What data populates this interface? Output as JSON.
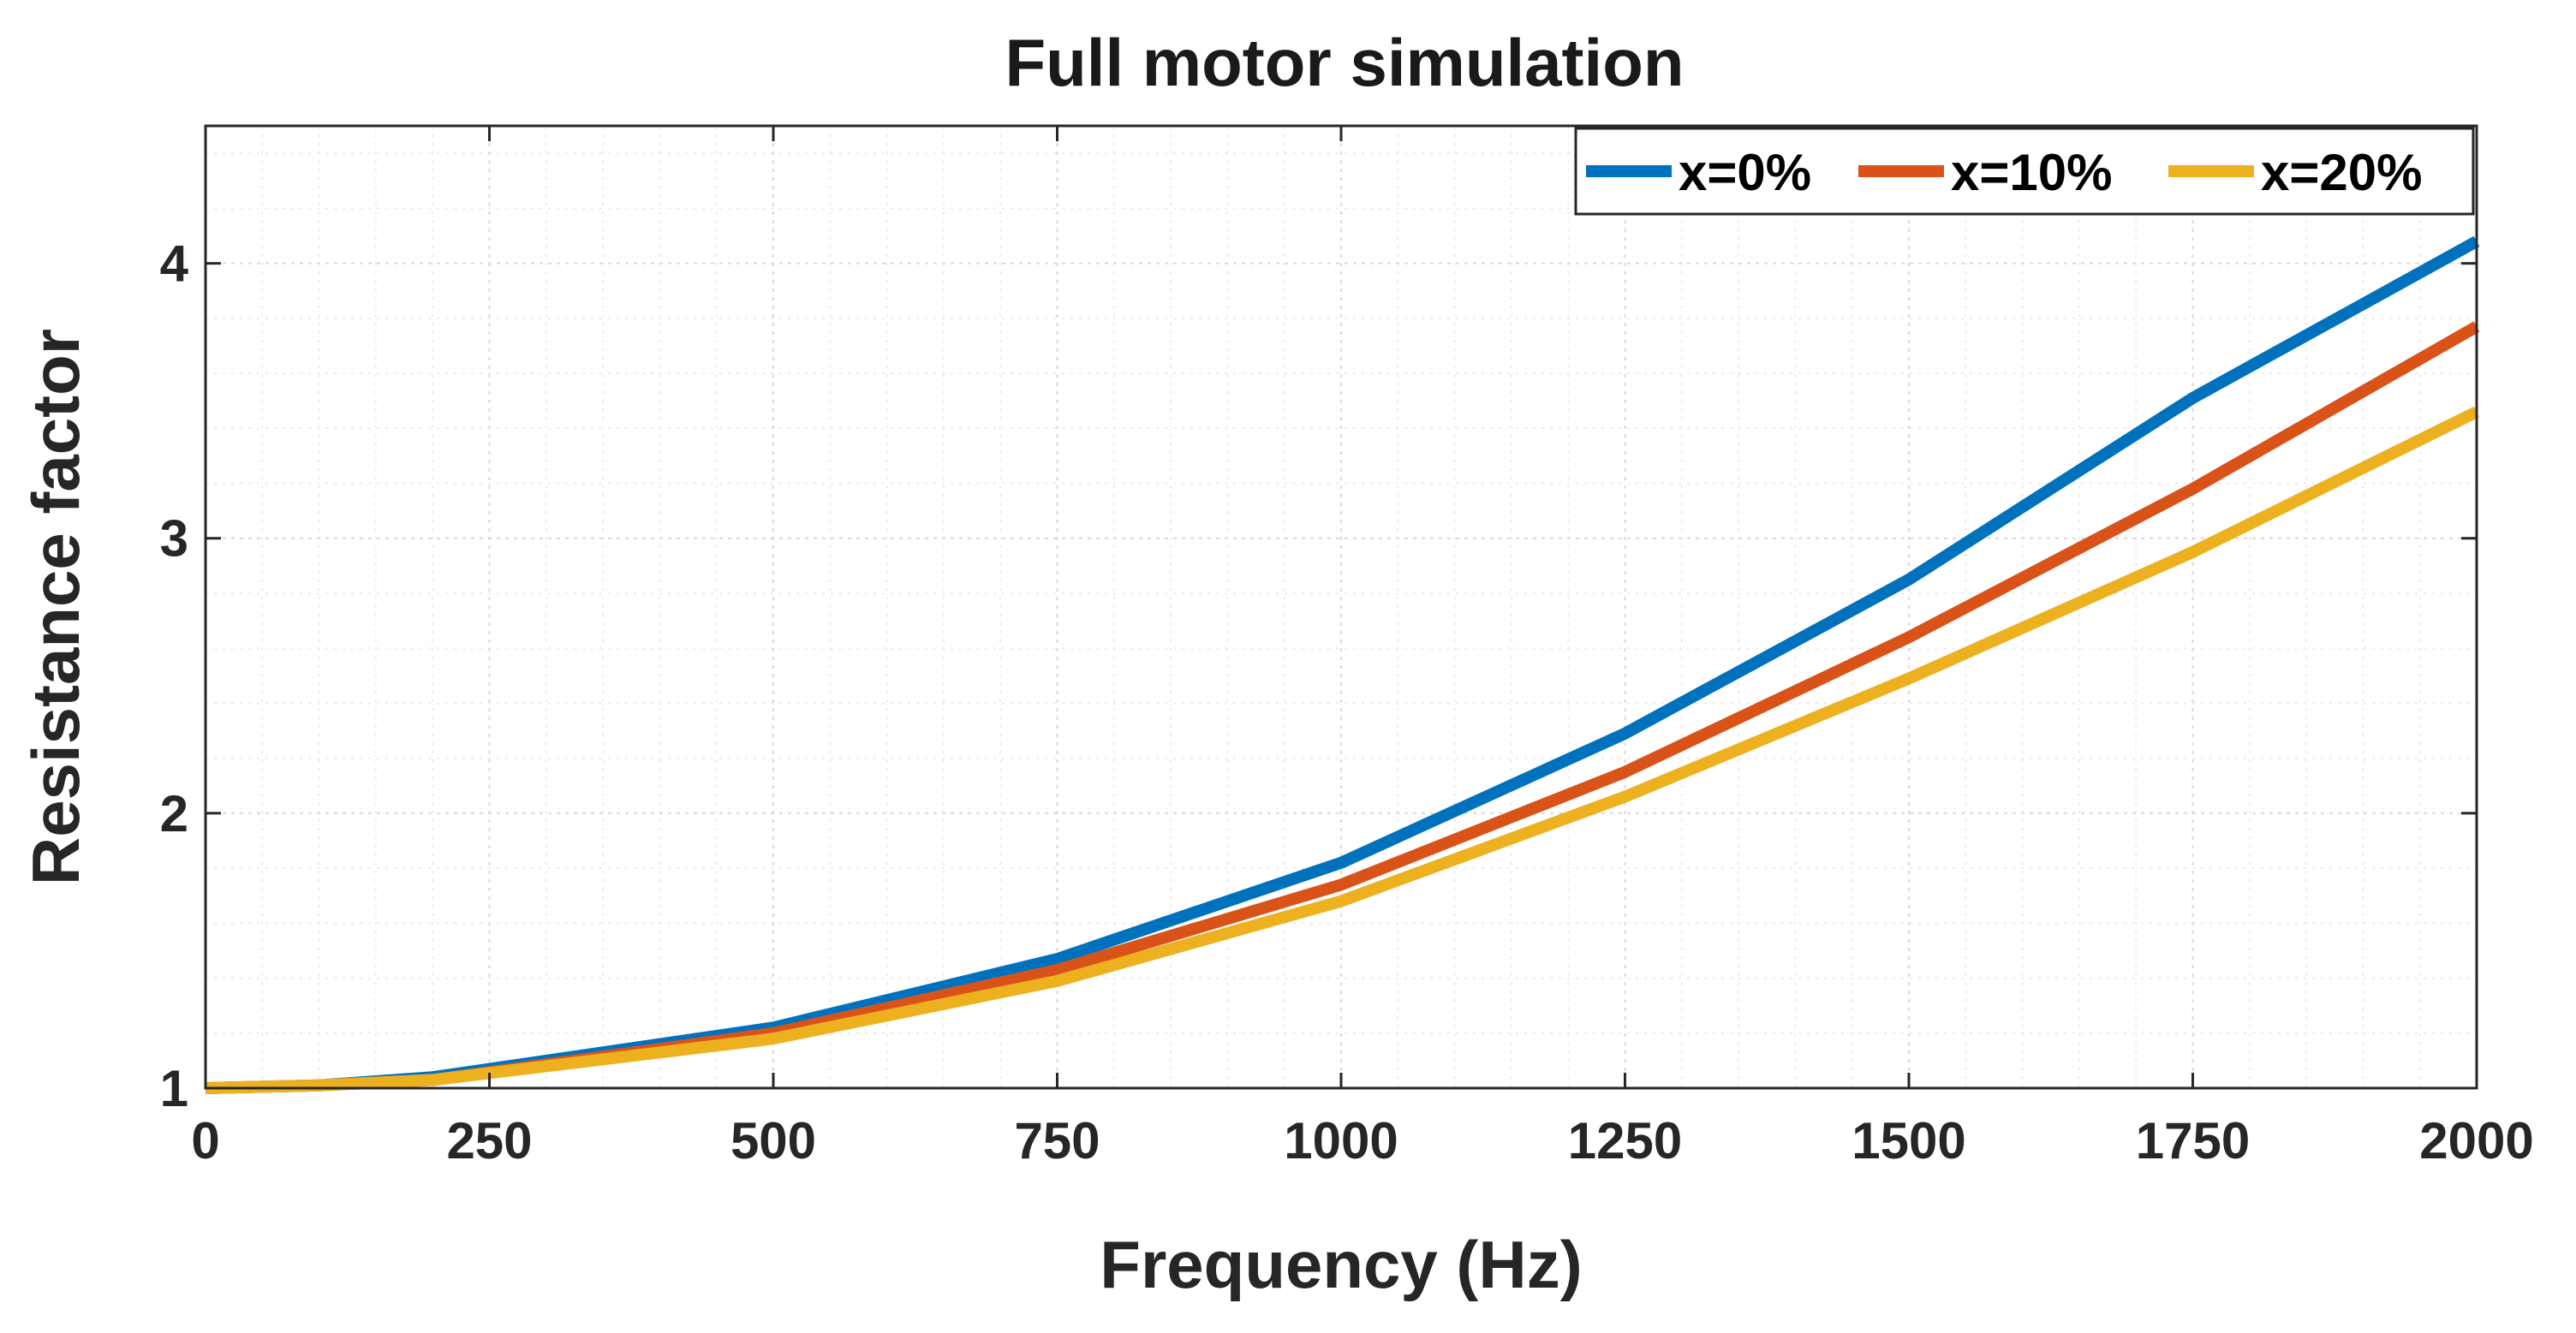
{
  "chart_data": {
    "type": "line",
    "title": "Full motor simulation",
    "xlabel": "Frequency (Hz)",
    "ylabel": "Resistance factor",
    "xlim": [
      0,
      2000
    ],
    "ylim": [
      1,
      4.5
    ],
    "xticks": [
      0,
      250,
      500,
      750,
      1000,
      1250,
      1500,
      1750,
      2000
    ],
    "yticks": [
      1,
      2,
      3,
      4
    ],
    "xtick_labels": [
      "0",
      "250",
      "500",
      "750",
      "1000",
      "1250",
      "1500",
      "1750",
      "2000"
    ],
    "ytick_labels": [
      "1",
      "2",
      "3",
      "4"
    ],
    "grid": true,
    "minor_grid": true,
    "legend_position": "top-right",
    "x": [
      0,
      100,
      200,
      500,
      750,
      1000,
      1250,
      1500,
      1750,
      2000
    ],
    "series": [
      {
        "name": "x=0%",
        "color": "#0072BD",
        "values": [
          1.0,
          1.01,
          1.04,
          1.22,
          1.47,
          1.82,
          2.29,
          2.85,
          3.51,
          4.08
        ]
      },
      {
        "name": "x=10%",
        "color": "#D95319",
        "values": [
          1.0,
          1.01,
          1.03,
          1.2,
          1.43,
          1.74,
          2.15,
          2.64,
          3.18,
          3.77
        ]
      },
      {
        "name": "x=20%",
        "color": "#EDB120",
        "values": [
          1.0,
          1.01,
          1.03,
          1.18,
          1.39,
          1.68,
          2.06,
          2.49,
          2.95,
          3.46
        ]
      }
    ]
  }
}
